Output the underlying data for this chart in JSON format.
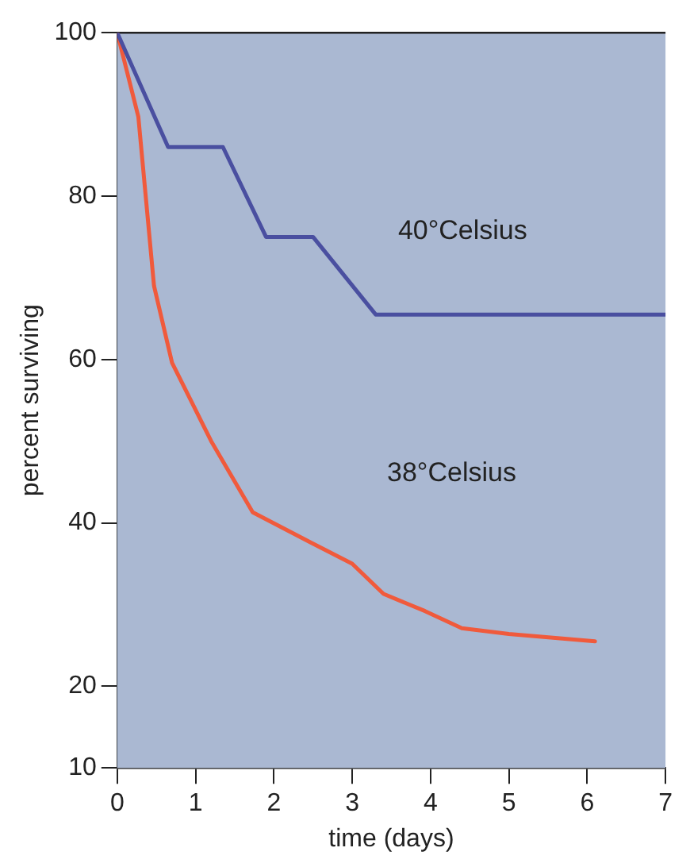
{
  "chart_data": {
    "type": "line",
    "xlabel": "time (days)",
    "ylabel": "percent surviving",
    "xlim": [
      0,
      7
    ],
    "xticks": [
      0,
      1,
      2,
      3,
      4,
      5,
      6,
      7
    ],
    "ylim": [
      10,
      100
    ],
    "yticks": [
      10,
      20,
      40,
      60,
      80,
      100
    ],
    "grid": false,
    "legend": false,
    "marker": "none",
    "series": [
      {
        "color": "#4a4fa0",
        "x": [
          0,
          0.65,
          1.35,
          1.9,
          2.5,
          3.3,
          7
        ],
        "values": [
          100,
          86,
          86,
          75,
          75,
          65.5,
          65.5
        ]
      },
      {
        "color": "#f05a3c",
        "x": [
          0,
          0.27,
          0.47,
          0.7,
          1.2,
          1.73,
          2.47,
          3.0,
          3.4,
          3.93,
          4.4,
          5,
          6.1
        ],
        "values": [
          100,
          89.7,
          69,
          59.6,
          50,
          41.3,
          37.6,
          35,
          31.3,
          29.2,
          27.1,
          26.4,
          25.5
        ]
      }
    ],
    "annotations": [
      "40°Celsius",
      "38°Celsius"
    ]
  }
}
